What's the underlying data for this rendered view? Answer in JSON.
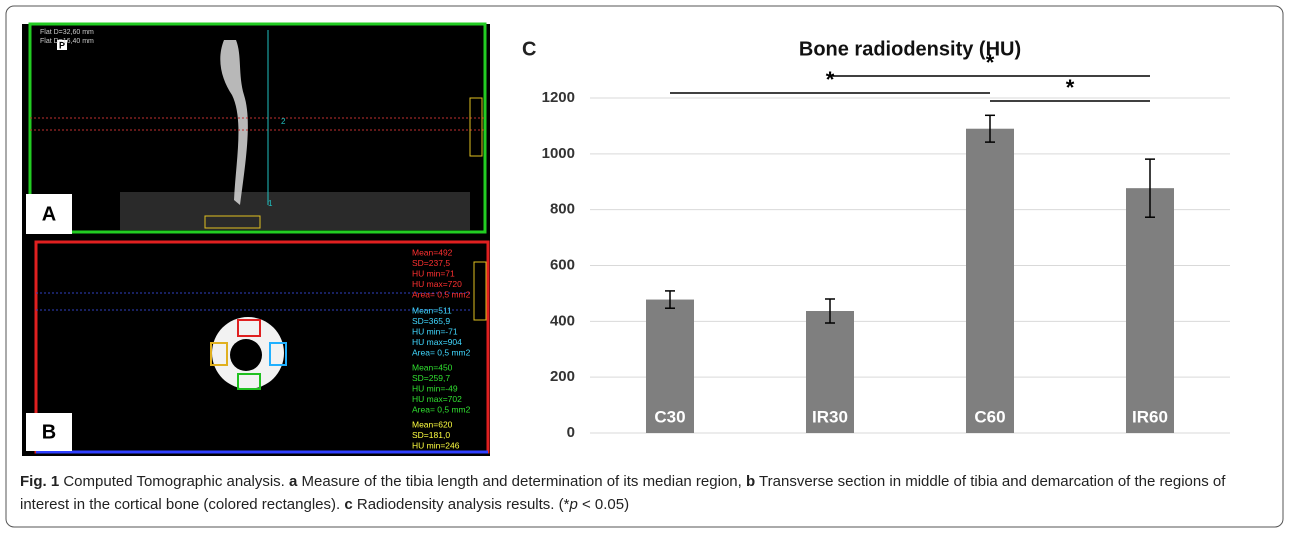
{
  "panel_a": {
    "label": "A",
    "overlay": [
      "Flat D=32,60 mm",
      "Flat D=16,40 mm"
    ],
    "marker": "P",
    "lines": [
      "2",
      "1"
    ]
  },
  "panel_b": {
    "label": "B",
    "groups": [
      {
        "color": "#ff3030",
        "lines": [
          "Mean=492",
          "SD=237,5",
          "HU min=71",
          "HU max=720",
          "Area= 0,5 mm2"
        ]
      },
      {
        "color": "#40d8ff",
        "lines": [
          "Mean=511",
          "SD=365,9",
          "HU min=-71",
          "HU max=904",
          "Area= 0,5 mm2"
        ]
      },
      {
        "color": "#30e030",
        "lines": [
          "Mean=450",
          "SD=259,7",
          "HU min=-49",
          "HU max=702",
          "Area= 0,5 mm2"
        ]
      },
      {
        "color": "#ffff40",
        "lines": [
          "Mean=620",
          "SD=181,0",
          "HU min=246"
        ]
      }
    ]
  },
  "chart_data": {
    "type": "bar",
    "panel_label": "C",
    "title": "Bone radiodensity (HU)",
    "categories": [
      "C30",
      "IR30",
      "C60",
      "IR60"
    ],
    "values": [
      478,
      437,
      1090,
      877
    ],
    "errors": [
      31,
      43,
      48,
      104
    ],
    "color": "#7f7f7f",
    "ylim": [
      0,
      1200
    ],
    "yticks": [
      0,
      200,
      400,
      600,
      800,
      1000,
      1200
    ],
    "grid": true,
    "significance": [
      {
        "from": "C30",
        "to": "C60",
        "label": "*"
      },
      {
        "from": "IR30",
        "to": "IR60",
        "label": "*"
      },
      {
        "from": "C60",
        "to": "IR60",
        "label": "*"
      }
    ]
  },
  "caption": [
    {
      "text": "Fig. 1",
      "style": "bold"
    },
    {
      "text": " Computed Tomographic analysis. ",
      "style": "normal"
    },
    {
      "text": "a",
      "style": "bold"
    },
    {
      "text": " Measure of the tibia length and determination of its median region, ",
      "style": "normal"
    },
    {
      "text": "b",
      "style": "bold"
    },
    {
      "text": " Transverse section in middle of tibia and demarcation of the regions of interest in the cortical bone (colored rectangles). ",
      "style": "normal"
    },
    {
      "text": "c",
      "style": "bold"
    },
    {
      "text": " Radiodensity analysis results. (*",
      "style": "normal"
    },
    {
      "text": "p",
      "style": "italic"
    },
    {
      "text": " < 0.05)",
      "style": "normal"
    }
  ]
}
